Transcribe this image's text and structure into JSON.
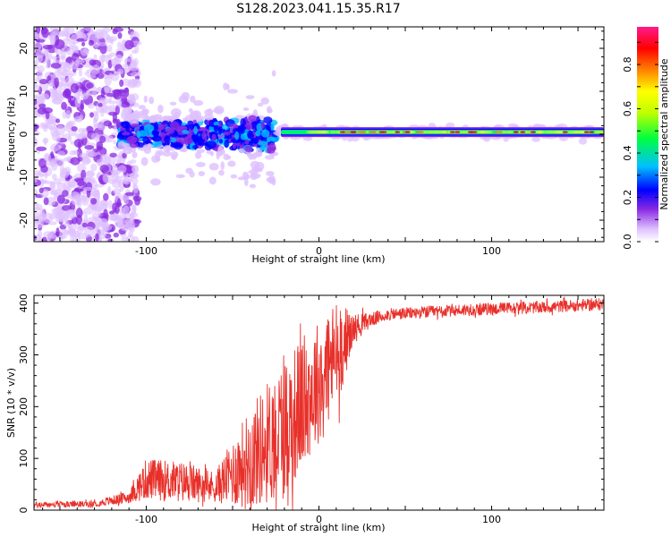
{
  "figure_title": "S128.2023.041.15.35.R17",
  "chart_data": [
    {
      "type": "heatmap",
      "title": "",
      "xlabel": "Height of straight line (km)",
      "ylabel": "Frequency (Hz)",
      "xlim": [
        -165,
        165
      ],
      "ylim": [
        -25,
        25
      ],
      "xticks": [
        -100,
        0,
        100
      ],
      "yticks": [
        -20,
        -10,
        0,
        10,
        20
      ],
      "colorbar": {
        "label": "Normalized spectral amplitude",
        "range": [
          0,
          0.97
        ],
        "ticks": [
          0.0,
          0.2,
          0.4,
          0.6,
          0.8
        ],
        "colormap": [
          "#ffffff",
          "#ddbfff",
          "#8a2be2",
          "#0000ff",
          "#00c0ff",
          "#00ff40",
          "#c0ff00",
          "#ffff00",
          "#ff8000",
          "#ff0000",
          "#ff1a8c"
        ]
      },
      "features": {
        "noise_region_x": [
          -165,
          -115
        ],
        "transition_region_x": [
          -115,
          -25
        ],
        "stable_tone_x": [
          -25,
          165
        ],
        "tone_frequency_hz": 0.5
      }
    },
    {
      "type": "line",
      "title": "",
      "xlabel": "Height of straight line (km)",
      "ylabel": "SNR (10 * v/v)",
      "xlim": [
        -165,
        165
      ],
      "ylim": [
        0,
        415
      ],
      "xticks": [
        -100,
        0,
        100
      ],
      "yticks": [
        0,
        100,
        200,
        300,
        400
      ],
      "color": "#e8302a",
      "envelope": {
        "x": [
          -165,
          -130,
          -110,
          -100,
          -80,
          -60,
          -40,
          -20,
          0,
          10,
          20,
          30,
          40,
          60,
          80,
          100,
          130,
          165
        ],
        "mean": [
          10,
          12,
          25,
          60,
          55,
          45,
          100,
          160,
          250,
          300,
          350,
          368,
          378,
          382,
          386,
          389,
          392,
          398
        ],
        "spread": [
          6,
          6,
          12,
          40,
          40,
          30,
          100,
          140,
          120,
          110,
          30,
          14,
          12,
          12,
          12,
          12,
          12,
          12
        ]
      }
    }
  ]
}
